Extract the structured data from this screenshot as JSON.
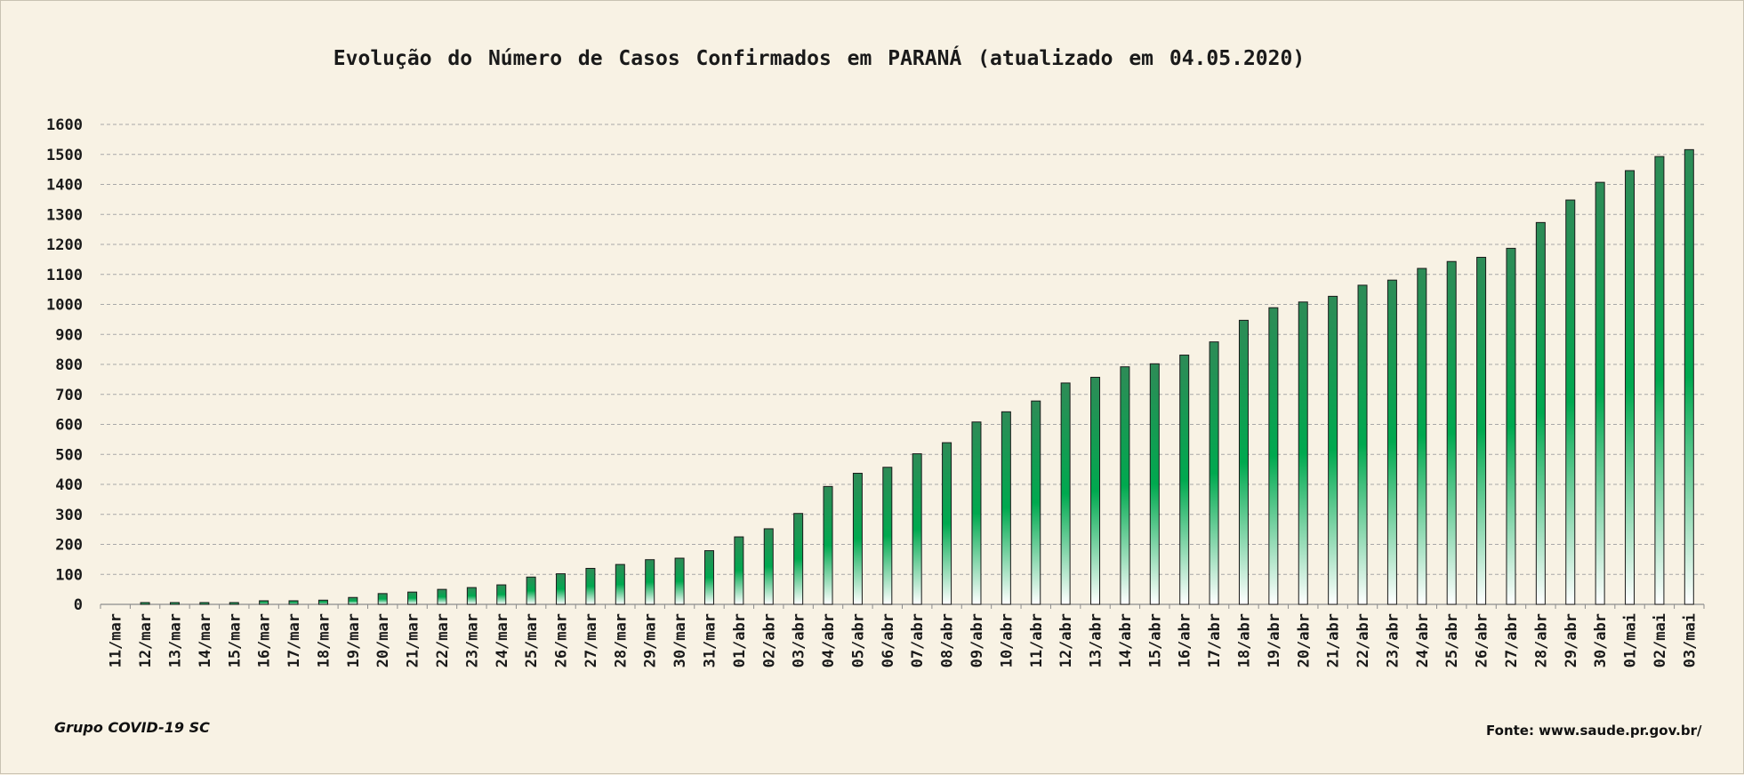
{
  "chart_data": {
    "type": "bar",
    "title": "Evolução do Número de Casos Confirmados em PARANÁ (atualizado em 04.05.2020)",
    "xlabel": "",
    "ylabel": "",
    "ylim": [
      0,
      1600
    ],
    "yticks": [
      "0",
      "100",
      "200",
      "300",
      "400",
      "500",
      "600",
      "700",
      "800",
      "900",
      "1000",
      "1100",
      "1200",
      "1300",
      "1400",
      "1500",
      "1600"
    ],
    "grid": true,
    "legend": "none",
    "colors": {
      "bar_top": "#2e8b57",
      "bar_mid": "#00a94f",
      "bar_bottom": "#ffffff",
      "bar_outline": "#1a1a1a",
      "grid": "#a8a8a8",
      "background": "#f8f2e4"
    },
    "categories": [
      "11/mar",
      "12/mar",
      "13/mar",
      "14/mar",
      "15/mar",
      "16/mar",
      "17/mar",
      "18/mar",
      "19/mar",
      "20/mar",
      "21/mar",
      "22/mar",
      "23/mar",
      "24/mar",
      "25/mar",
      "26/mar",
      "27/mar",
      "28/mar",
      "29/mar",
      "30/mar",
      "31/mar",
      "01/abr",
      "02/abr",
      "03/abr",
      "04/abr",
      "05/abr",
      "06/abr",
      "07/abr",
      "08/abr",
      "09/abr",
      "10/abr",
      "11/abr",
      "12/abr",
      "13/abr",
      "14/abr",
      "15/abr",
      "16/abr",
      "17/abr",
      "18/abr",
      "19/abr",
      "20/abr",
      "21/abr",
      "22/abr",
      "23/abr",
      "24/abr",
      "25/abr",
      "26/abr",
      "27/abr",
      "28/abr",
      "29/abr",
      "30/abr",
      "01/mai",
      "02/mai",
      "03/mai"
    ],
    "values": [
      0,
      6,
      6,
      6,
      6,
      12,
      12,
      14,
      23,
      36,
      41,
      50,
      56,
      65,
      91,
      102,
      120,
      133,
      149,
      154,
      179,
      225,
      252,
      303,
      393,
      437,
      457,
      502,
      539,
      608,
      642,
      678,
      738,
      757,
      792,
      802,
      831,
      875,
      947,
      989,
      1008,
      1027,
      1064,
      1081,
      1120,
      1143,
      1157,
      1187,
      1273,
      1348,
      1407,
      1446,
      1493,
      1516
    ]
  },
  "footer": {
    "credit_left": "Grupo COVID-19 SC",
    "credit_right": "Fonte: www.saude.pr.gov.br/"
  }
}
